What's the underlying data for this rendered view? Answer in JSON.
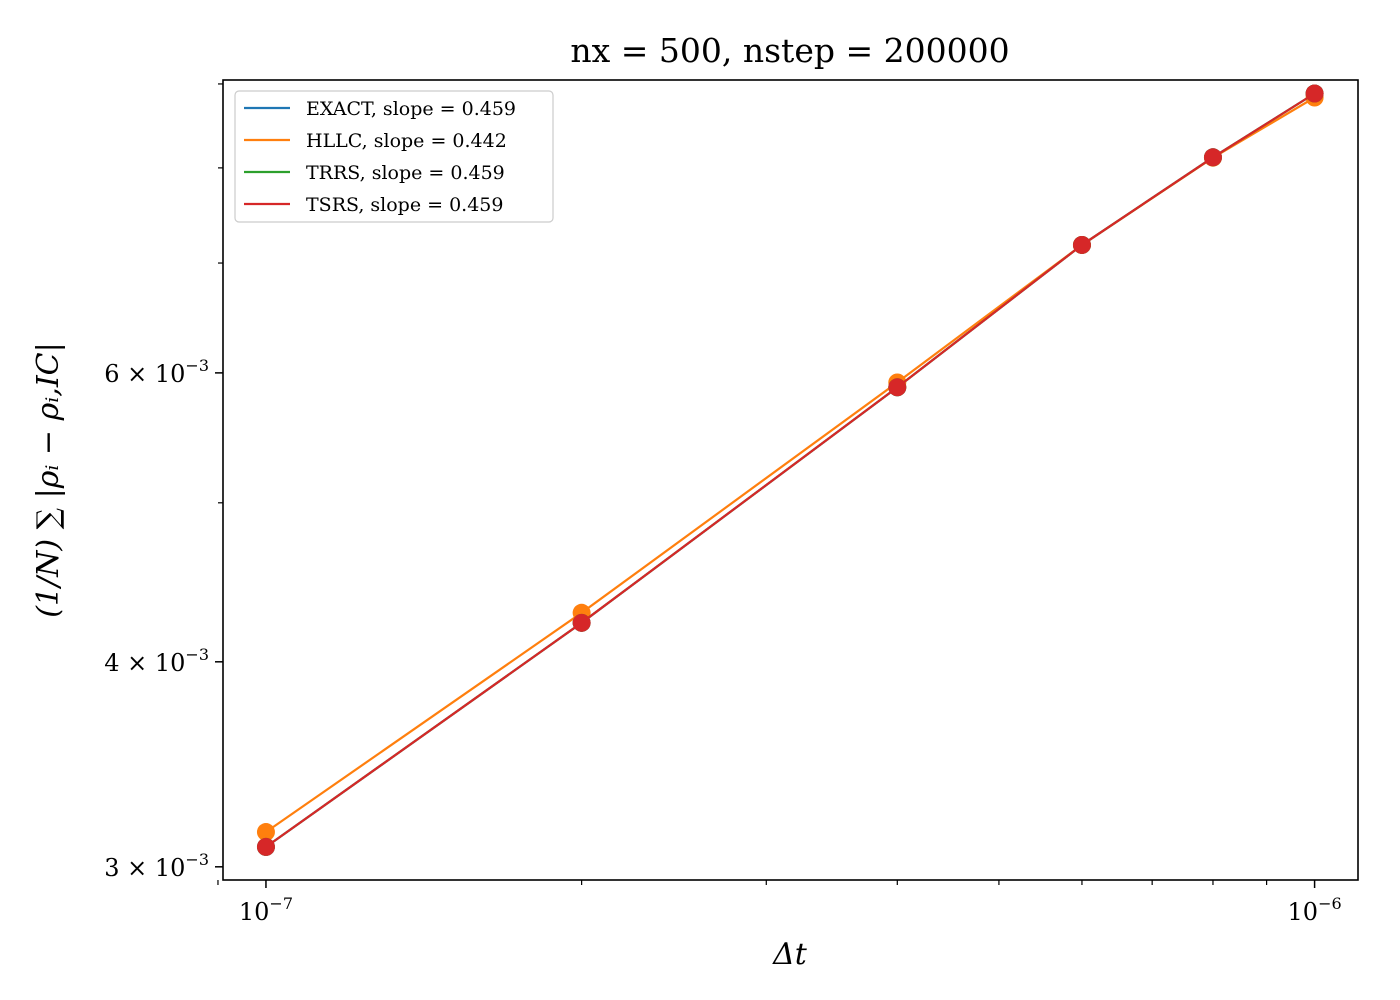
{
  "chart_data": {
    "type": "line",
    "title": "nx = 500, nstep = 200000",
    "xlabel": "Δt",
    "ylabel": "(1/N) ∑ |ρᵢ − ρᵢ,IC|",
    "x_scale": "log",
    "y_scale": "log",
    "xlim": [
      9.1e-08,
      1.1e-06
    ],
    "ylim": [
      0.002945,
      0.00905
    ],
    "x_ticks": [
      {
        "value": 1e-07,
        "base": "10",
        "exp": "−7"
      },
      {
        "value": 1e-06,
        "base": "10",
        "exp": "−6"
      }
    ],
    "y_ticks": [
      {
        "value": 0.003,
        "base": "3 × 10",
        "exp": "−3"
      },
      {
        "value": 0.004,
        "base": "4 × 10",
        "exp": "−3"
      },
      {
        "value": 0.006,
        "base": "6 × 10",
        "exp": "−3"
      }
    ],
    "x": [
      1e-07,
      2e-07,
      4e-07,
      6e-07,
      8e-07,
      1e-06
    ],
    "series": [
      {
        "name": "EXACT, slope = 0.459",
        "color": "#1f77b4",
        "values": [
          0.003085,
          0.004225,
          0.00588,
          0.00718,
          0.00812,
          0.00888
        ]
      },
      {
        "name": "HLLC, slope = 0.442",
        "color": "#ff7f0e",
        "values": [
          0.00315,
          0.004285,
          0.00592,
          0.00718,
          0.008115,
          0.00883
        ]
      },
      {
        "name": "TRRS, slope = 0.459",
        "color": "#2ca02c",
        "values": [
          0.003085,
          0.004225,
          0.00588,
          0.00718,
          0.00812,
          0.00888
        ]
      },
      {
        "name": "TSRS, slope = 0.459",
        "color": "#d62728",
        "values": [
          0.003085,
          0.004225,
          0.00588,
          0.00718,
          0.00812,
          0.00888
        ]
      }
    ],
    "legend_position": "top-left",
    "grid": false
  }
}
